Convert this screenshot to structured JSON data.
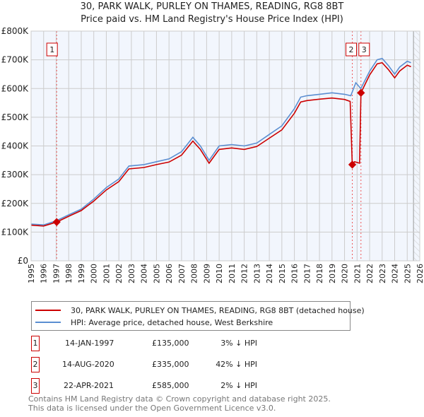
{
  "title": "30, PARK WALK, PURLEY ON THAMES, READING, RG8 8BT",
  "subtitle": "Price paid vs. HM Land Registry's House Price Index (HPI)",
  "chart_data": {
    "type": "line",
    "xlim": [
      1995,
      2026
    ],
    "ylim": [
      0,
      800000
    ],
    "x_ticks": [
      "1995",
      "1996",
      "1997",
      "1998",
      "1999",
      "2000",
      "2001",
      "2002",
      "2003",
      "2004",
      "2005",
      "2006",
      "2007",
      "2008",
      "2009",
      "2010",
      "2011",
      "2012",
      "2013",
      "2014",
      "2015",
      "2016",
      "2017",
      "2018",
      "2019",
      "2020",
      "2021",
      "2022",
      "2023",
      "2024",
      "2025",
      "2026"
    ],
    "y_ticks": [
      {
        "v": 0,
        "label": "£0"
      },
      {
        "v": 100000,
        "label": "£100K"
      },
      {
        "v": 200000,
        "label": "£200K"
      },
      {
        "v": 300000,
        "label": "£300K"
      },
      {
        "v": 400000,
        "label": "£400K"
      },
      {
        "v": 500000,
        "label": "£500K"
      },
      {
        "v": 600000,
        "label": "£600K"
      },
      {
        "v": 700000,
        "label": "£700K"
      },
      {
        "v": 800000,
        "label": "£800K"
      }
    ],
    "grid": true,
    "series": [
      {
        "name": "HPI: Average price, detached house, West Berkshire",
        "color": "#5b8ed1",
        "x": [
          1995,
          1996,
          1997,
          1998,
          1999,
          2000,
          2001,
          2002,
          2002.8,
          2004,
          2005,
          2006,
          2007,
          2007.9,
          2008.5,
          2009.2,
          2010,
          2011,
          2012,
          2013,
          2014,
          2015,
          2016,
          2016.5,
          2017,
          2018,
          2019,
          2020,
          2020.5,
          2020.9,
          2021.3,
          2022,
          2022.6,
          2023,
          2023.5,
          2024,
          2024.4,
          2025,
          2025.3
        ],
        "y": [
          128000,
          125000,
          139000,
          160000,
          180000,
          215000,
          255000,
          285000,
          330000,
          335000,
          345000,
          355000,
          380000,
          430000,
          400000,
          350000,
          400000,
          405000,
          400000,
          410000,
          440000,
          470000,
          530000,
          570000,
          575000,
          580000,
          585000,
          580000,
          575000,
          620000,
          600000,
          660000,
          700000,
          705000,
          680000,
          650000,
          675000,
          695000,
          690000
        ]
      },
      {
        "name": "30, PARK WALK, PURLEY ON THAMES, READING, RG8 8BT (detached house)",
        "color": "#cc0000",
        "x": [
          1995,
          1996,
          1997.04,
          1998,
          1999,
          2000,
          2001,
          2002,
          2002.8,
          2004,
          2005,
          2006,
          2007,
          2007.9,
          2008.5,
          2009.2,
          2010,
          2011,
          2012,
          2013,
          2014,
          2015,
          2016,
          2016.5,
          2017,
          2018,
          2019,
          2020,
          2020.45,
          2020.62,
          2020.8,
          2021.2,
          2021.31,
          2022,
          2022.6,
          2023,
          2023.5,
          2024,
          2024.4,
          2025,
          2025.3
        ],
        "y": [
          124000,
          121000,
          135000,
          155000,
          175000,
          208000,
          247000,
          276000,
          320000,
          325000,
          335000,
          344000,
          368000,
          417000,
          388000,
          340000,
          388000,
          393000,
          388000,
          398000,
          427000,
          456000,
          514000,
          553000,
          558000,
          563000,
          567000,
          562000,
          555000,
          335000,
          345000,
          340000,
          585000,
          647000,
          686000,
          690000,
          666000,
          637000,
          661000,
          681000,
          676000
        ]
      }
    ],
    "sales": [
      {
        "id": "1",
        "date": "14-JAN-1997",
        "x": 1997.04,
        "price": "£135,000",
        "value": 135000,
        "hpi": "3% ↓ HPI"
      },
      {
        "id": "2",
        "date": "14-AUG-2020",
        "x": 2020.62,
        "price": "£335,000",
        "value": 335000,
        "hpi": "42% ↓ HPI"
      },
      {
        "id": "3",
        "date": "22-APR-2021",
        "x": 2021.31,
        "price": "£585,000",
        "value": 585000,
        "hpi": "2% ↓ HPI"
      }
    ],
    "forecast_start": 2025.5
  },
  "footer": [
    "Contains HM Land Registry data © Crown copyright and database right 2025.",
    "This data is licensed under the Open Government Licence v3.0."
  ]
}
